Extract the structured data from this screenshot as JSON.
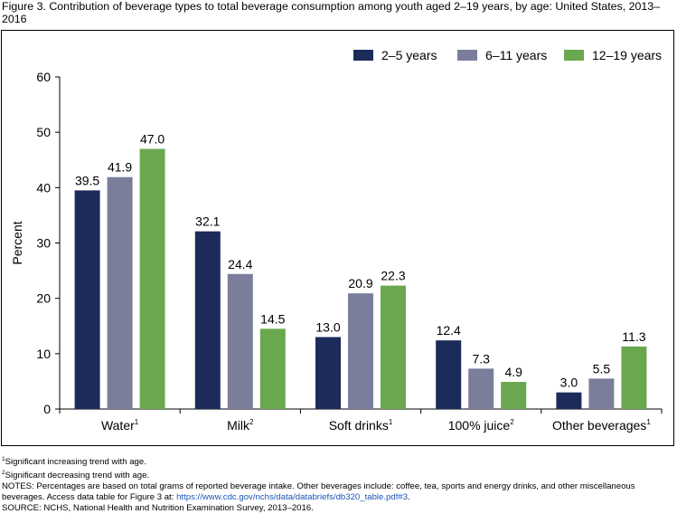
{
  "title": "Figure 3. Contribution of beverage types to total beverage consumption among youth aged 2–19 years, by age: United States, 2013–2016",
  "colors": {
    "series_1": "#1c2b5a",
    "series_2": "#7b7e9b",
    "series_3": "#6aa84f",
    "axis": "#000000"
  },
  "chart_data": {
    "type": "bar",
    "categories": [
      "Water",
      "Milk",
      "Soft drinks",
      "100% juice",
      "Other beverages"
    ],
    "category_superscripts": [
      "1",
      "2",
      "1",
      "2",
      "1"
    ],
    "series": [
      {
        "name": "2–5 years",
        "values": [
          39.5,
          32.1,
          13.0,
          12.4,
          3.0
        ]
      },
      {
        "name": "6–11 years",
        "values": [
          41.9,
          24.4,
          20.9,
          7.3,
          5.5
        ]
      },
      {
        "name": "12–19 years",
        "values": [
          47.0,
          14.5,
          22.3,
          4.9,
          11.3
        ]
      }
    ],
    "ylabel": "Percent",
    "xlabel": "",
    "ylim": [
      0,
      60
    ],
    "yticks": [
      0,
      10,
      20,
      30,
      40,
      50,
      60
    ],
    "legend_position": "top-right",
    "grid": false
  },
  "notes": {
    "note1_sup": "1",
    "note1": "Significant increasing trend with age.",
    "note2_sup": "2",
    "note2": "Significant decreasing trend with age.",
    "notes_text": "NOTES: Percentages are based on total grams of reported beverage intake. Other beverages include: coffee, tea, sports and energy drinks, and other miscellaneous beverages. Access data table for Figure 3 at: ",
    "link": "https://www.cdc.gov/nchs/data/databriefs/db320_table.pdf#3",
    "notes_end": ".",
    "source": "SOURCE: NCHS, National Health and Nutrition Examination Survey, 2013–2016."
  }
}
